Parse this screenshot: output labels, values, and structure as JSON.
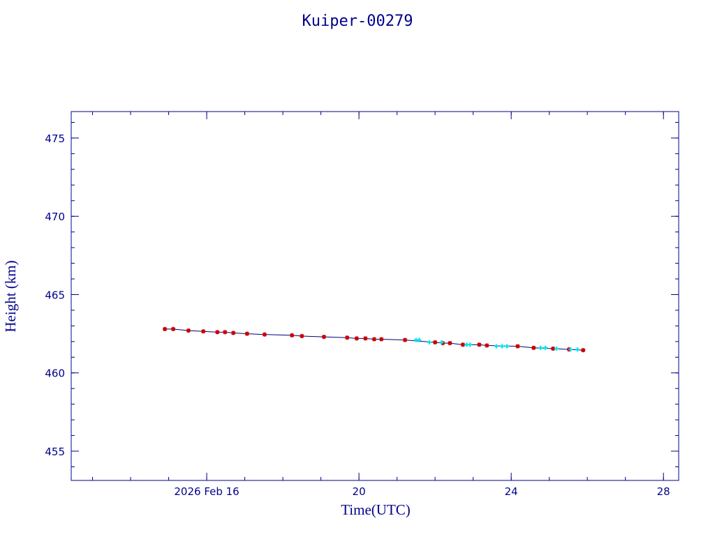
{
  "chart_data": {
    "type": "scatter-line",
    "title": "Kuiper-00279",
    "x_label": "Time(UTC)",
    "y_label": "Height (km)",
    "xlim": [
      12.44,
      28.4
    ],
    "ylim": [
      453.13,
      476.69
    ],
    "xticks": [
      {
        "value": 16,
        "label": "2026 Feb 16"
      },
      20,
      24,
      28
    ],
    "yticks": [
      455,
      460,
      465,
      470,
      475
    ],
    "line_color": "#000080",
    "axis_color": "#00008b",
    "series": [
      {
        "color": "#cc0000",
        "marker": "star",
        "connect": true,
        "x": [
          14.9,
          15.12,
          15.52,
          15.91,
          16.28,
          16.48,
          16.7,
          17.06,
          17.52,
          18.24,
          18.5,
          19.08,
          19.69,
          19.94,
          20.17,
          20.4,
          20.59,
          21.21,
          22.0,
          22.2,
          22.39,
          22.73,
          23.16,
          23.36,
          24.17,
          24.59,
          25.1,
          25.52,
          25.89
        ],
        "values": [
          462.8,
          462.8,
          462.7,
          462.65,
          462.6,
          462.6,
          462.55,
          462.5,
          462.45,
          462.4,
          462.35,
          462.3,
          462.25,
          462.2,
          462.2,
          462.15,
          462.15,
          462.1,
          461.95,
          461.9,
          461.9,
          461.8,
          461.8,
          461.75,
          461.7,
          461.6,
          461.55,
          461.5,
          461.45
        ]
      },
      {
        "color": "#00e5ee",
        "marker": "cross",
        "connect": false,
        "x": [
          21.5,
          21.58,
          21.85,
          22.17,
          22.83,
          22.92,
          23.61,
          23.76,
          23.89,
          24.77,
          24.9,
          25.19,
          25.56,
          25.74
        ],
        "values": [
          462.1,
          462.1,
          461.95,
          461.95,
          461.8,
          461.8,
          461.7,
          461.7,
          461.7,
          461.6,
          461.6,
          461.55,
          461.5,
          461.5
        ]
      }
    ]
  }
}
